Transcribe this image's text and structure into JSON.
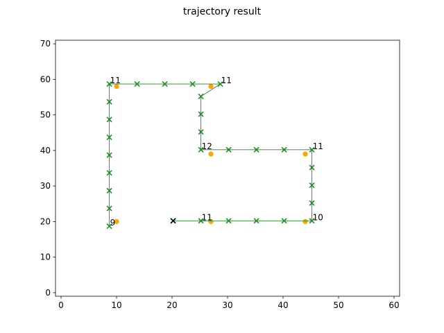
{
  "chart_data": {
    "type": "scatter",
    "title": "trajectory result",
    "xlabel": "",
    "ylabel": "",
    "xlim": [
      -1,
      61
    ],
    "ylim": [
      -1,
      71
    ],
    "xticks": [
      0,
      10,
      20,
      30,
      40,
      50,
      60
    ],
    "yticks": [
      0,
      10,
      20,
      30,
      40,
      50,
      60,
      70
    ],
    "grid": false,
    "colors": {
      "trajectory": "#228b22",
      "landmarks": "#ffa500",
      "start": "#000000"
    },
    "start_point": {
      "x": 20.2,
      "y": 20.2
    },
    "series": [
      {
        "style": "line-with-x-markers",
        "x": [
          20.2,
          25.2,
          30.2,
          35.2,
          40.2,
          45.2,
          45.2,
          45.2,
          45.2,
          45.2,
          40.2,
          35.2,
          30.2,
          25.2,
          25.2,
          25.2,
          25.2,
          28.7,
          23.7,
          18.7,
          13.7,
          8.7,
          8.7,
          8.7,
          8.7,
          8.7,
          8.7,
          8.7,
          8.7,
          8.7
        ],
        "y": [
          20.2,
          20.2,
          20.2,
          20.2,
          20.2,
          20.2,
          25.2,
          30.2,
          35.2,
          40.2,
          40.2,
          40.2,
          40.2,
          40.2,
          45.2,
          50.2,
          55.2,
          58.7,
          58.7,
          58.7,
          58.7,
          58.7,
          53.7,
          48.7,
          43.7,
          38.7,
          33.7,
          28.7,
          23.7,
          18.7
        ]
      },
      {
        "style": "orange-dots",
        "x": [
          27,
          44,
          44,
          27,
          27,
          10,
          10
        ],
        "y": [
          20,
          20,
          39,
          39,
          58,
          58,
          20
        ],
        "labels_xy": [
          {
            "text": "11",
            "x": 25.2,
            "y": 20.2
          },
          {
            "text": "10",
            "x": 45.2,
            "y": 20.2
          },
          {
            "text": "11",
            "x": 45.2,
            "y": 40.2
          },
          {
            "text": "12",
            "x": 25.2,
            "y": 40.2
          },
          {
            "text": "11",
            "x": 28.7,
            "y": 58.7
          },
          {
            "text": "11",
            "x": 8.7,
            "y": 58.7
          },
          {
            "text": "9",
            "x": 8.7,
            "y": 18.7
          }
        ]
      }
    ]
  }
}
